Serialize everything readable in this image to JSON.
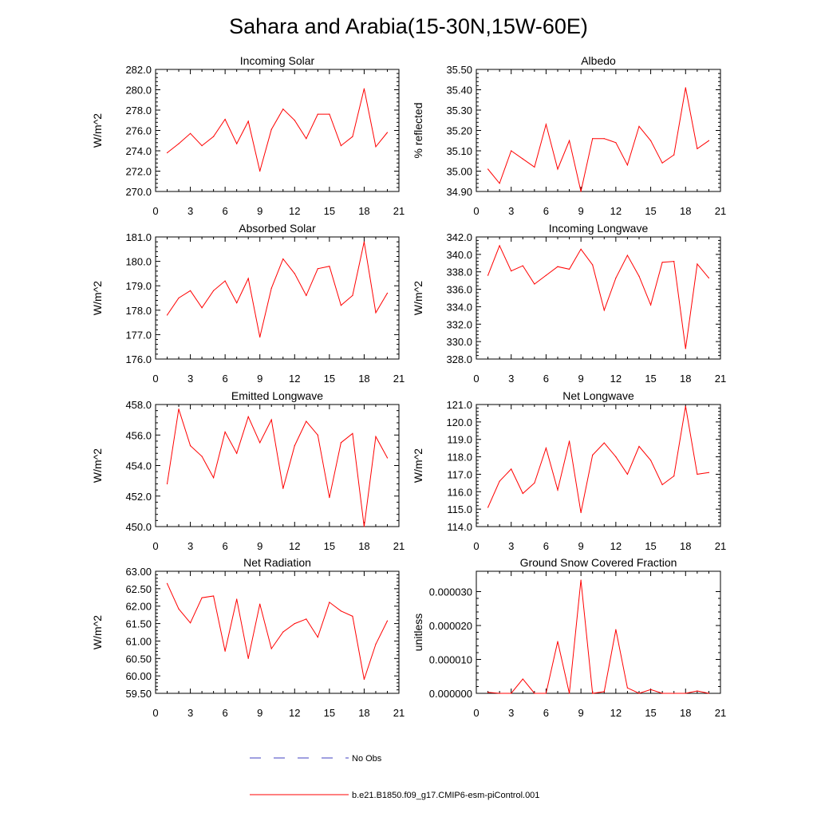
{
  "title": "Sahara and Arabia(15-30N,15W-60E)",
  "x_ticks": [
    0,
    3,
    6,
    9,
    12,
    15,
    18,
    21
  ],
  "x_range": [
    0,
    21
  ],
  "line_color": "#ff0000",
  "obs_color": "#4040c0",
  "legend": {
    "obs_label": "No Obs",
    "model_label": "b.e21.B1850.f09_g17.CMIP6-esm-piControl.001"
  },
  "chart_data": [
    {
      "type": "line",
      "title": "Incoming Solar",
      "ylabel": "W/m^2",
      "ylim": [
        270,
        282
      ],
      "y_ticks": [
        "270.0",
        "272.0",
        "274.0",
        "276.0",
        "278.0",
        "280.0",
        "282.0"
      ],
      "x": [
        1,
        2,
        3,
        4,
        5,
        6,
        7,
        8,
        9,
        10,
        11,
        12,
        13,
        14,
        15,
        16,
        17,
        18,
        19,
        20
      ],
      "values": [
        273.8,
        274.7,
        275.7,
        274.5,
        275.4,
        277.1,
        274.7,
        276.9,
        272.0,
        276.1,
        278.1,
        277.0,
        275.2,
        277.6,
        277.6,
        274.5,
        275.4,
        280.1,
        274.4,
        275.8
      ]
    },
    {
      "type": "line",
      "title": "Albedo",
      "ylabel": "% reflected",
      "ylim": [
        34.9,
        35.5
      ],
      "y_ticks": [
        "34.90",
        "35.00",
        "35.10",
        "35.20",
        "35.30",
        "35.40",
        "35.50"
      ],
      "x": [
        1,
        2,
        3,
        4,
        5,
        6,
        7,
        8,
        9,
        10,
        11,
        12,
        13,
        14,
        15,
        16,
        17,
        18,
        19,
        20
      ],
      "values": [
        35.01,
        34.94,
        35.1,
        35.06,
        35.02,
        35.23,
        35.01,
        35.15,
        34.9,
        35.16,
        35.16,
        35.14,
        35.03,
        35.22,
        35.15,
        35.04,
        35.08,
        35.41,
        35.11,
        35.15
      ]
    },
    {
      "type": "line",
      "title": "Absorbed Solar",
      "ylabel": "W/m^2",
      "ylim": [
        176,
        181
      ],
      "y_ticks": [
        "176.0",
        "177.0",
        "178.0",
        "179.0",
        "180.0",
        "181.0"
      ],
      "x": [
        1,
        2,
        3,
        4,
        5,
        6,
        7,
        8,
        9,
        10,
        11,
        12,
        13,
        14,
        15,
        16,
        17,
        18,
        19,
        20
      ],
      "values": [
        177.8,
        178.5,
        178.8,
        178.1,
        178.8,
        179.2,
        178.3,
        179.3,
        176.9,
        178.9,
        180.1,
        179.5,
        178.6,
        179.7,
        179.8,
        178.2,
        178.6,
        180.8,
        177.9,
        178.7
      ]
    },
    {
      "type": "line",
      "title": "Incoming Longwave",
      "ylabel": "W/m^2",
      "ylim": [
        328,
        342
      ],
      "y_ticks": [
        "328.0",
        "330.0",
        "332.0",
        "334.0",
        "336.0",
        "338.0",
        "340.0",
        "342.0"
      ],
      "x": [
        1,
        2,
        3,
        4,
        5,
        6,
        7,
        8,
        9,
        10,
        11,
        12,
        13,
        14,
        15,
        16,
        17,
        18,
        19,
        20
      ],
      "values": [
        337.6,
        341.0,
        338.1,
        338.7,
        336.6,
        337.6,
        338.6,
        338.3,
        340.6,
        338.8,
        333.6,
        337.3,
        339.9,
        337.5,
        334.2,
        339.1,
        339.2,
        329.2,
        338.9,
        337.3
      ]
    },
    {
      "type": "line",
      "title": "Emitted Longwave",
      "ylabel": "W/m^2",
      "ylim": [
        450,
        458
      ],
      "y_ticks": [
        "450.0",
        "452.0",
        "454.0",
        "456.0",
        "458.0"
      ],
      "x": [
        1,
        2,
        3,
        4,
        5,
        6,
        7,
        8,
        9,
        10,
        11,
        12,
        13,
        14,
        15,
        16,
        17,
        18,
        19,
        20
      ],
      "values": [
        452.8,
        457.7,
        455.3,
        454.6,
        453.2,
        456.2,
        454.8,
        457.2,
        455.5,
        457.0,
        452.5,
        455.3,
        456.9,
        456.0,
        451.9,
        455.5,
        456.1,
        450.0,
        455.9,
        454.5
      ]
    },
    {
      "type": "line",
      "title": "Net Longwave",
      "ylabel": "W/m^2",
      "ylim": [
        114,
        121
      ],
      "y_ticks": [
        "114.0",
        "115.0",
        "116.0",
        "117.0",
        "118.0",
        "119.0",
        "120.0",
        "121.0"
      ],
      "x": [
        1,
        2,
        3,
        4,
        5,
        6,
        7,
        8,
        9,
        10,
        11,
        12,
        13,
        14,
        15,
        16,
        17,
        18,
        19,
        20
      ],
      "values": [
        115.1,
        116.6,
        117.3,
        115.9,
        116.5,
        118.5,
        116.1,
        118.9,
        114.8,
        118.1,
        118.8,
        118.0,
        117.0,
        118.6,
        117.8,
        116.4,
        116.9,
        120.9,
        117.0,
        117.1
      ]
    },
    {
      "type": "line",
      "title": "Net Radiation",
      "ylabel": "W/m^2",
      "ylim": [
        59.5,
        63.0
      ],
      "y_ticks": [
        "59.50",
        "60.00",
        "60.50",
        "61.00",
        "61.50",
        "62.00",
        "62.50",
        "63.00"
      ],
      "x": [
        1,
        2,
        3,
        4,
        5,
        6,
        7,
        8,
        9,
        10,
        11,
        12,
        13,
        14,
        15,
        16,
        17,
        18,
        19,
        20
      ],
      "values": [
        62.65,
        61.92,
        61.52,
        62.24,
        62.29,
        60.71,
        62.2,
        60.5,
        62.06,
        60.78,
        61.26,
        61.5,
        61.63,
        61.11,
        62.11,
        61.86,
        61.71,
        59.9,
        60.91,
        61.58
      ]
    },
    {
      "type": "line",
      "title": "Ground Snow Covered Fraction",
      "ylabel": "unitless",
      "ylim": [
        0,
        3.6e-05
      ],
      "y_ticks": [
        "0.000000",
        "0.000010",
        "0.000020",
        "0.000030"
      ],
      "y_tick_values": [
        0,
        1e-05,
        2e-05,
        3e-05
      ],
      "x": [
        1,
        2,
        3,
        4,
        5,
        6,
        7,
        8,
        9,
        10,
        11,
        12,
        13,
        14,
        15,
        16,
        17,
        18,
        19,
        20
      ],
      "values": [
        3e-07,
        0.0,
        0.0,
        4.2e-06,
        0.0,
        0.0,
        1.53e-05,
        0.0,
        3.34e-05,
        0.0,
        5e-07,
        1.88e-05,
        1.6e-06,
        0.0,
        1.1e-06,
        0.0,
        0.0,
        0.0,
        7e-07,
        0.0
      ]
    }
  ]
}
